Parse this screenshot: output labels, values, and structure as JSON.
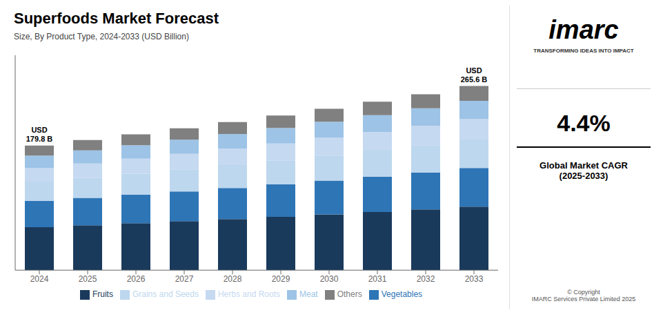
{
  "chart_data": {
    "type": "bar",
    "title": "Superfoods Market Forecast",
    "subtitle": "Size, By Product Type, 2024-2033 (USD Billion)",
    "categories": [
      2024,
      2025,
      2026,
      2027,
      2028,
      2029,
      2030,
      2031,
      2032,
      2033
    ],
    "series": [
      {
        "name": "Fruits",
        "color": "#1a3a5c",
        "values": [
          62.031,
          64.76,
          67.61,
          70.585,
          73.69,
          76.933,
          80.318,
          83.852,
          87.541,
          91.632
        ]
      },
      {
        "name": "Vegetables",
        "color": "#2e75b6",
        "values": [
          37.758,
          39.419,
          41.154,
          42.965,
          44.855,
          46.829,
          48.889,
          51.04,
          53.286,
          55.776
        ]
      },
      {
        "name": "Grains and Seeds",
        "color": "#bdd7ee",
        "values": [
          27.869,
          29.095,
          30.375,
          31.712,
          33.107,
          34.564,
          36.085,
          37.673,
          39.33,
          41.168
        ]
      },
      {
        "name": "Herbs and Roots",
        "color": "#c5d9f1",
        "values": [
          19.778,
          20.648,
          21.557,
          22.505,
          23.495,
          24.529,
          25.609,
          26.735,
          27.912,
          29.216
        ]
      },
      {
        "name": "Meat",
        "color": "#9dc3e6",
        "values": [
          17.98,
          18.771,
          19.597,
          20.459,
          21.36,
          22.299,
          23.281,
          24.305,
          25.374,
          26.56
        ]
      },
      {
        "name": "Others",
        "color": "#808080",
        "values": [
          14.384,
          15.017,
          15.678,
          16.367,
          17.088,
          17.839,
          18.624,
          19.444,
          20.299,
          21.248
        ]
      }
    ],
    "ylim": [
      0,
      310
    ],
    "stacked": true,
    "legend": "bottom",
    "grid": false,
    "tick_labels": "x",
    "annotations": [
      {
        "text": "USD\n179.8 B",
        "x": 2024
      },
      {
        "text": "USD\n265.6 B",
        "x": 2033
      }
    ],
    "panel": {
      "logo": "imarc",
      "tagline": "TRANSFORMING IDEAS INTO IMPACT",
      "value": "4.4%",
      "label": "Global Market CAGR\n(2025-2033)",
      "footer": "© Copyright\nIMARC Services Private Limited 2025"
    }
  }
}
